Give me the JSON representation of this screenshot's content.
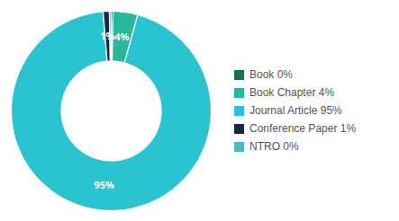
{
  "chart_data": {
    "type": "pie",
    "categories": [
      "Book 0%",
      "Book Chapter 4%",
      "Journal Article 95%",
      "Conference Paper 1%",
      "NTRO 0%"
    ],
    "values": [
      0.3,
      4,
      95,
      1,
      0.3
    ],
    "value_labels": [
      null,
      "4%",
      "95%",
      "1%",
      null
    ],
    "colors": [
      "#1a6b5a",
      "#2ab89a",
      "#29c4d0",
      "#1a2744",
      "#4db8c0"
    ],
    "data_labels": true,
    "legend": "right"
  }
}
